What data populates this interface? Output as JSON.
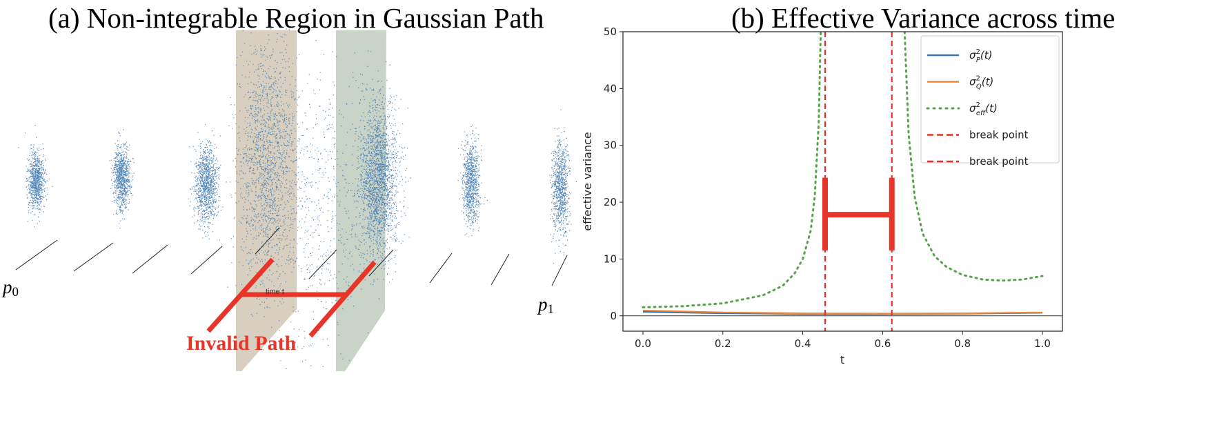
{
  "panel_a": {
    "title": "(a) Non-integrable Region in Gaussian Path",
    "label_p0": "p",
    "label_p0_sub": "0",
    "label_p1": "p",
    "label_p1_sub": "1",
    "time_label": "time t",
    "invalid_label": "Invalid Path",
    "colors": {
      "points": "#3a75b0",
      "plane_left": "#d9cfc0",
      "plane_right": "#c9d3c8",
      "annotation": "#e8352a"
    }
  },
  "panel_b": {
    "title": "(b) Effective Variance across time"
  },
  "chart_data": {
    "type": "line",
    "xlabel": "t",
    "ylabel": "effective variance",
    "xlim": [
      -0.05,
      1.05
    ],
    "ylim": [
      -2.7,
      50
    ],
    "xticks": [
      "0.0",
      "0.2",
      "0.4",
      "0.6",
      "0.8",
      "1.0"
    ],
    "xtick_values": [
      0,
      0.2,
      0.4,
      0.6,
      0.8,
      1.0
    ],
    "yticks": [
      "0",
      "10",
      "20",
      "30",
      "40",
      "50"
    ],
    "ytick_values": [
      0,
      10,
      20,
      30,
      40,
      50
    ],
    "grid": false,
    "legend_placement": "top-right",
    "series": [
      {
        "name": "σ²_P(t)",
        "legend_main": "σ",
        "legend_sup": "2",
        "legend_sub": "P",
        "legend_tail": "(t)",
        "color": "#3b75af",
        "style": "solid",
        "x": [
          0,
          0.2,
          0.4,
          0.6,
          0.8,
          1.0
        ],
        "y": [
          0.7,
          0.45,
          0.32,
          0.3,
          0.38,
          0.55
        ]
      },
      {
        "name": "σ²_Q(t)",
        "legend_main": "σ",
        "legend_sup": "2",
        "legend_sub": "Q",
        "legend_tail": "(t)",
        "color": "#ef8636",
        "style": "solid",
        "x": [
          0,
          0.2,
          0.4,
          0.6,
          0.8,
          1.0
        ],
        "y": [
          0.95,
          0.6,
          0.45,
          0.4,
          0.45,
          0.6
        ]
      },
      {
        "name": "σ²_eff(t)",
        "legend_main": "σ",
        "legend_sup": "2",
        "legend_sub": "eff",
        "legend_tail": "(t)",
        "color": "#55a24a",
        "style": "dotted",
        "segments": [
          {
            "x": [
              0,
              0.1,
              0.2,
              0.3,
              0.35,
              0.38,
              0.4,
              0.42,
              0.43,
              0.44,
              0.445
            ],
            "y": [
              1.5,
              1.7,
              2.2,
              3.6,
              5.3,
              7.5,
              10,
              15,
              21,
              34,
              50
            ]
          },
          {
            "x": [
              0.655,
              0.665,
              0.68,
              0.7,
              0.73,
              0.76,
              0.8,
              0.85,
              0.9,
              0.95,
              1.0
            ],
            "y": [
              50,
              32,
              21,
              14.5,
              10.5,
              8.6,
              7.2,
              6.4,
              6.2,
              6.4,
              7.0
            ]
          }
        ]
      },
      {
        "name": "break point",
        "color": "#e5312a",
        "style": "dashed",
        "vline": 0.456
      },
      {
        "name": "break point",
        "color": "#e5312a",
        "style": "dashed",
        "vline": 0.623
      }
    ],
    "annotation": {
      "type": "interval-marker",
      "x_start": 0.456,
      "x_end": 0.623,
      "y": 17.8,
      "y_low": 11.5,
      "y_high": 24.3,
      "color": "#e8352a"
    }
  }
}
